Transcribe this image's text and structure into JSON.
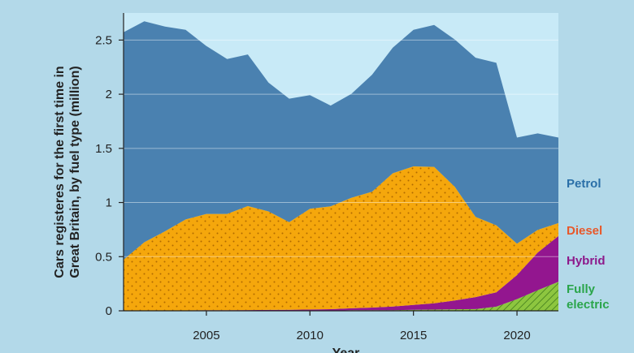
{
  "chart_data": {
    "type": "area",
    "stacked": true,
    "ylabel": "Cars registeres for the first time in Great Britain, by fuel type (million)",
    "xlabel": "Year",
    "xlim": [
      2001,
      2022
    ],
    "ylim": [
      0,
      2.75
    ],
    "x_ticks": [
      "2005",
      "2010",
      "2015",
      "2020"
    ],
    "y_ticks": [
      "0",
      "0.5",
      "1",
      "1.5",
      "2",
      "2.5"
    ],
    "grid": "horizontal",
    "x": [
      2001,
      2002,
      2003,
      2004,
      2005,
      2006,
      2007,
      2008,
      2009,
      2010,
      2011,
      2012,
      2013,
      2014,
      2015,
      2016,
      2017,
      2018,
      2019,
      2020,
      2021,
      2022
    ],
    "series": [
      {
        "name": "Fully electric",
        "color": "#8dc63f",
        "pattern": "hatch",
        "values": [
          0,
          0,
          0,
          0,
          0,
          0,
          0,
          0,
          0,
          0,
          0,
          0.005,
          0.005,
          0.006,
          0.009,
          0.011,
          0.014,
          0.016,
          0.038,
          0.108,
          0.19,
          0.268
        ]
      },
      {
        "name": "Hybrid",
        "color": "#93168f",
        "values": [
          0.002,
          0.003,
          0.004,
          0.004,
          0.005,
          0.005,
          0.007,
          0.008,
          0.009,
          0.012,
          0.015,
          0.018,
          0.025,
          0.034,
          0.045,
          0.058,
          0.081,
          0.111,
          0.132,
          0.222,
          0.348,
          0.422
        ]
      },
      {
        "name": "Diesel",
        "color": "#f5a70c",
        "pattern": "dots",
        "values": [
          0.47,
          0.63,
          0.73,
          0.84,
          0.89,
          0.89,
          0.96,
          0.91,
          0.81,
          0.93,
          0.95,
          1.02,
          1.07,
          1.23,
          1.28,
          1.26,
          1.05,
          0.74,
          0.62,
          0.29,
          0.21,
          0.12
        ]
      },
      {
        "name": "Petrol",
        "color": "#4a81b0",
        "values": [
          2.1,
          2.04,
          1.89,
          1.75,
          1.55,
          1.43,
          1.4,
          1.19,
          1.14,
          1.05,
          0.93,
          0.96,
          1.08,
          1.16,
          1.26,
          1.31,
          1.36,
          1.47,
          1.5,
          0.98,
          0.89,
          0.79
        ]
      }
    ],
    "labels": [
      {
        "text": "Petrol",
        "color": "#2a6fa8"
      },
      {
        "text": "Diesel",
        "color": "#e8582a"
      },
      {
        "text": "Hybrid",
        "color": "#8d1a8b"
      },
      {
        "text": "Fully electric",
        "color": "#2aa54a"
      }
    ],
    "plot_background": "#c8eaf7",
    "page_background": "#b3d9e9"
  }
}
